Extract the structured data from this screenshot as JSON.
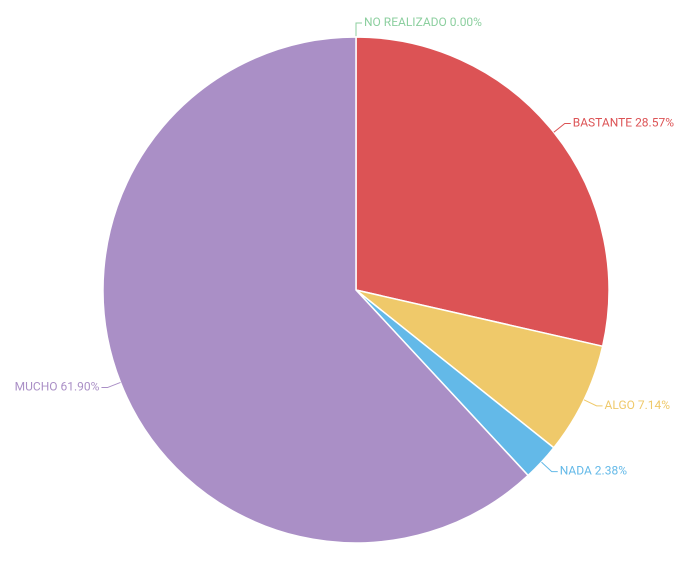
{
  "chart_data": {
    "type": "pie",
    "categories": [
      "NO REALIZADO",
      "BASTANTE",
      "ALGO",
      "NADA",
      "MUCHO"
    ],
    "values": [
      0.0,
      28.57,
      7.14,
      2.38,
      61.9
    ],
    "value_labels": [
      "0.00%",
      "28.57%",
      "7.14%",
      "2.38%",
      "61.90%"
    ],
    "colors": [
      "#8ccf9f",
      "#dc5355",
      "#efc96a",
      "#63b9e8",
      "#aa8fc6"
    ]
  }
}
